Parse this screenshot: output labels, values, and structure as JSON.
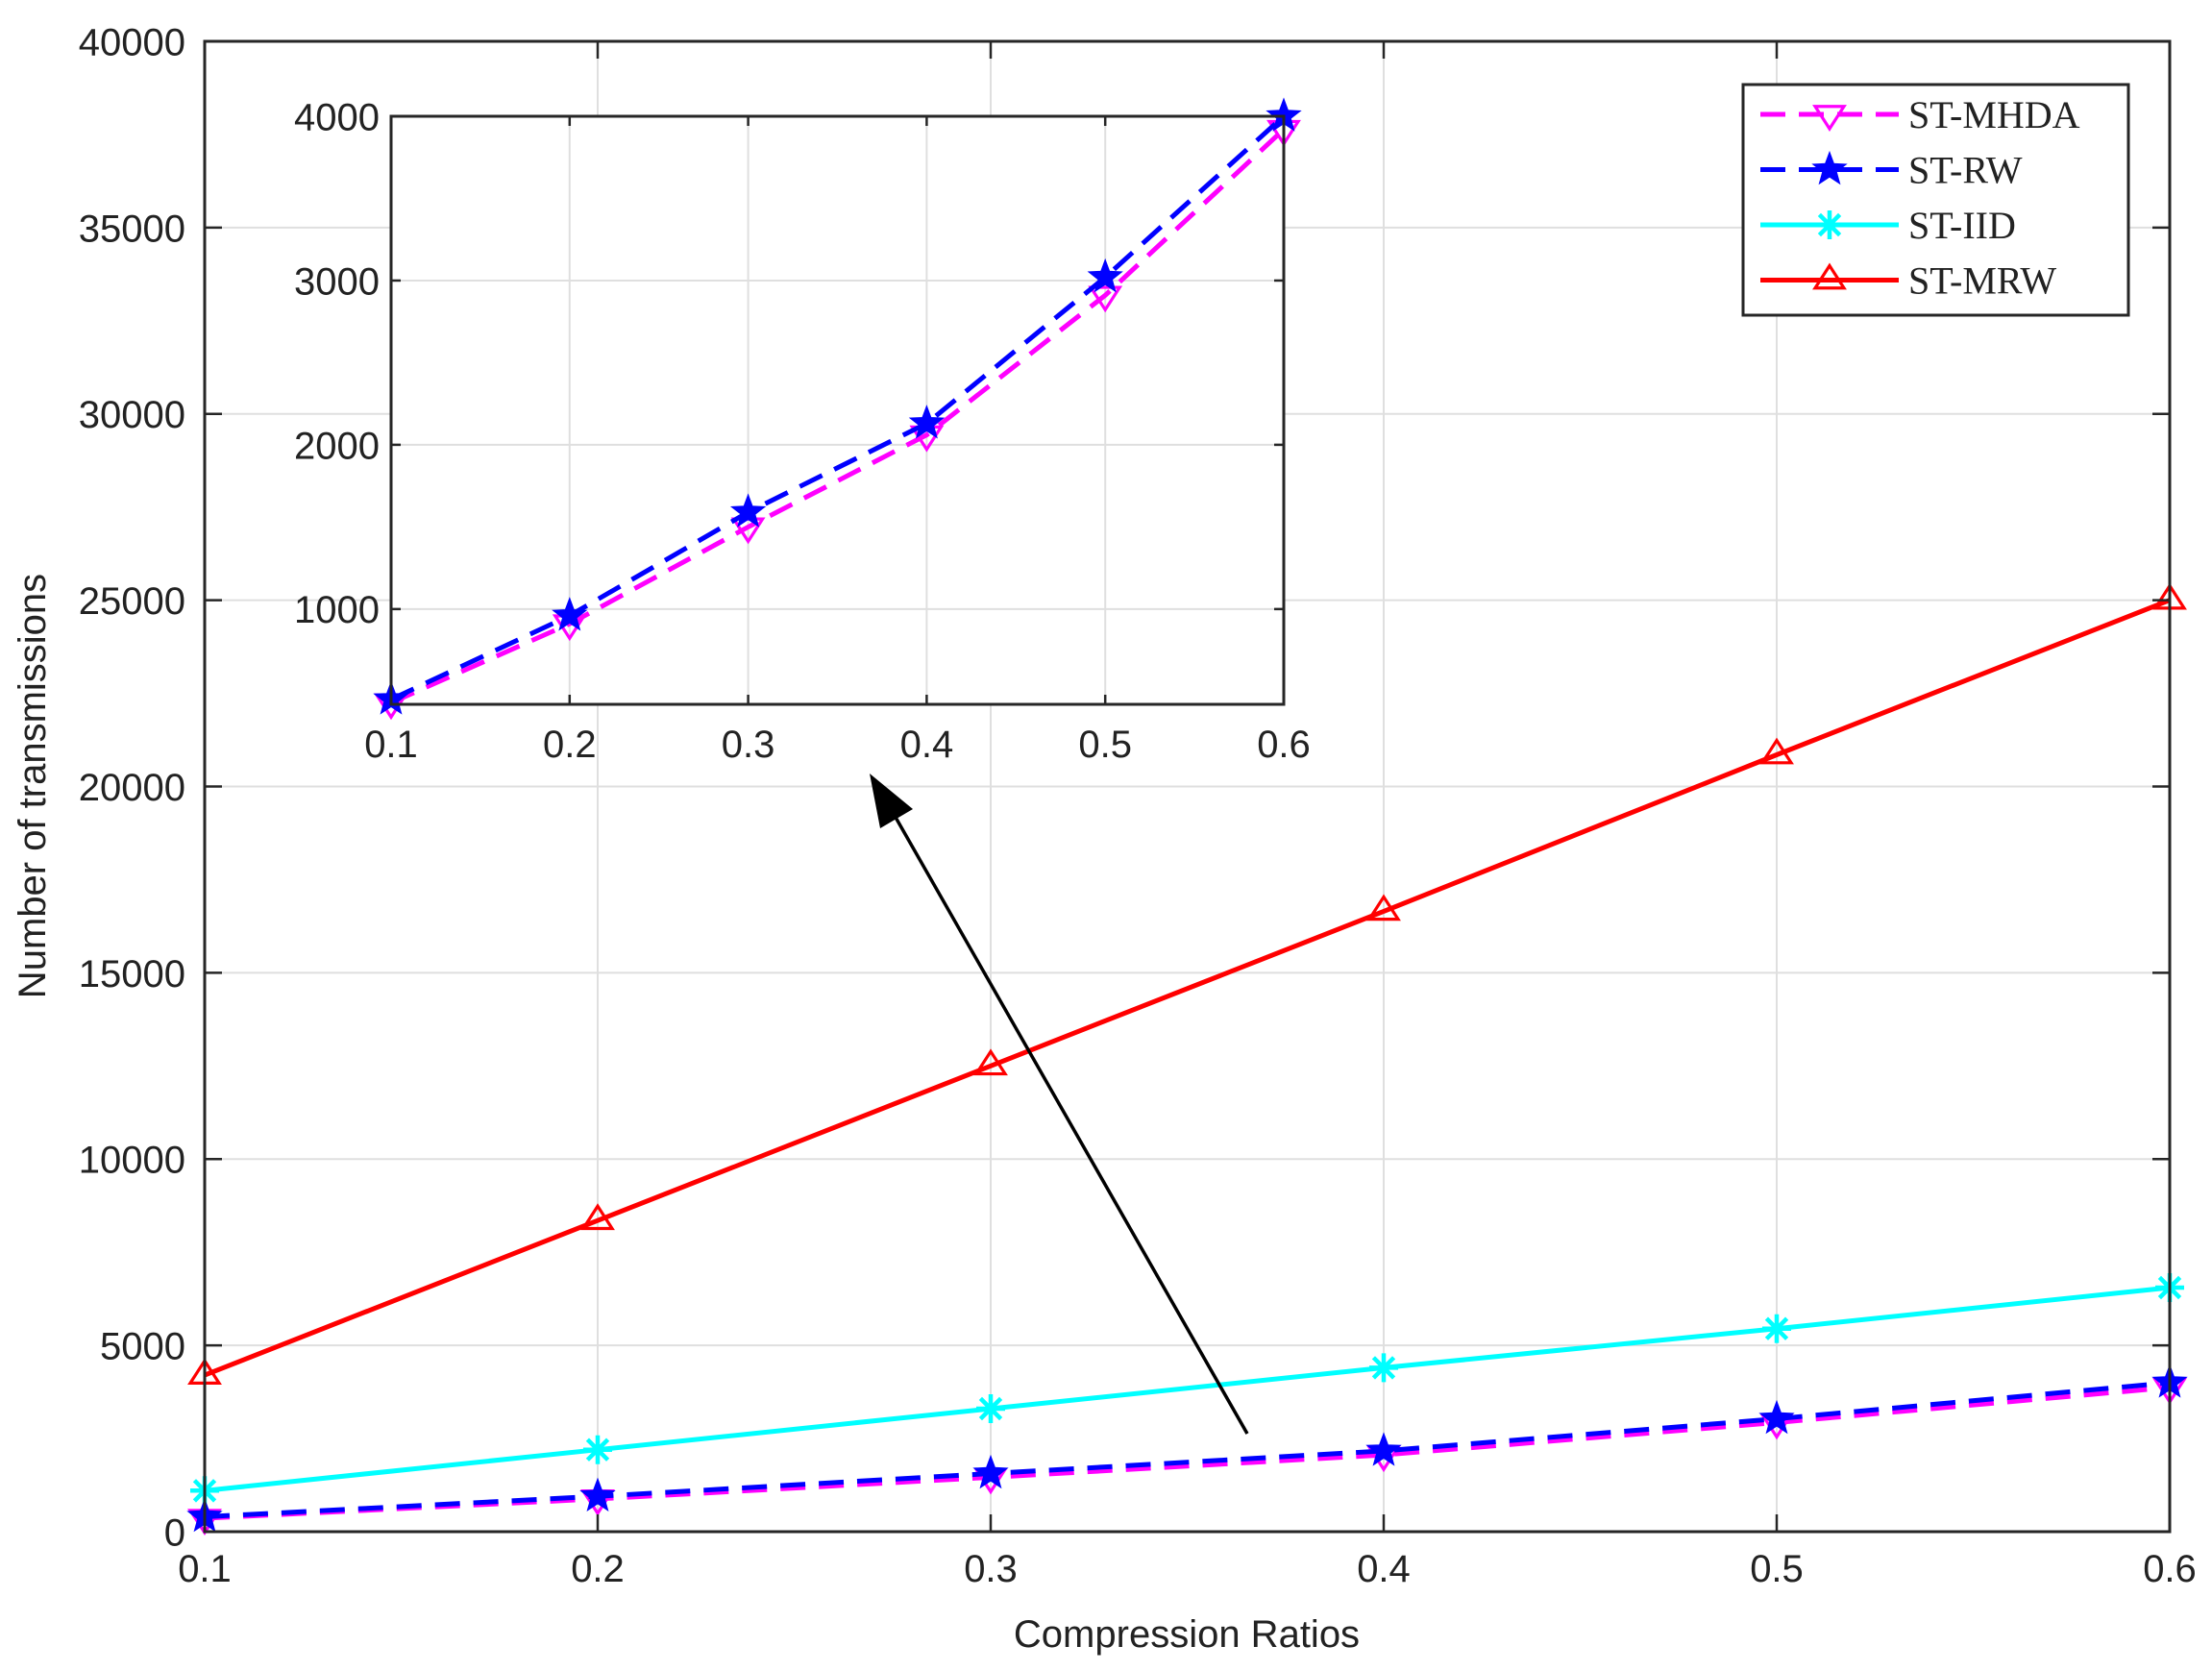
{
  "chart_data": [
    {
      "type": "line",
      "role": "main",
      "xlabel": "Compression Ratios",
      "ylabel": "Number of transmissions",
      "xlim": [
        0.1,
        0.6
      ],
      "ylim": [
        0,
        40000
      ],
      "xticks": [
        0.1,
        0.2,
        0.3,
        0.4,
        0.5,
        0.6
      ],
      "xtick_labels": [
        "0.1",
        "0.2",
        "0.3",
        "0.4",
        "0.5",
        "0.6"
      ],
      "yticks": [
        0,
        5000,
        10000,
        15000,
        20000,
        25000,
        30000,
        35000,
        40000
      ],
      "ytick_labels": [
        "0",
        "5000",
        "10000",
        "15000",
        "20000",
        "25000",
        "30000",
        "35000",
        "40000"
      ],
      "grid": true,
      "legend": "top-right",
      "x": [
        0.1,
        0.2,
        0.3,
        0.4,
        0.5,
        0.6
      ],
      "series": [
        {
          "name": "ST-MHDA",
          "values": [
            360,
            880,
            1460,
            2060,
            2930,
            3870
          ],
          "color": "#ff00ff",
          "dash": "dashed",
          "marker": "triangle-down"
        },
        {
          "name": "ST-RW",
          "values": [
            400,
            950,
            1560,
            2170,
            3030,
            4000
          ],
          "color": "#0000ff",
          "dash": "dashed",
          "marker": "star"
        },
        {
          "name": "ST-IID",
          "values": [
            1100,
            2200,
            3300,
            4400,
            5450,
            6550
          ],
          "color": "#00ffff",
          "dash": "solid",
          "marker": "asterisk"
        },
        {
          "name": "ST-MRW",
          "values": [
            4200,
            8350,
            12500,
            16650,
            20850,
            25000
          ],
          "color": "#ff0000",
          "dash": "solid",
          "marker": "triangle-up"
        }
      ],
      "annotation": "arrow from the main ST-RW/ST-MHDA curves to the inset"
    },
    {
      "type": "line",
      "role": "inset",
      "xlim": [
        0.1,
        0.6
      ],
      "ylim": [
        420,
        4000
      ],
      "xticks": [
        0.1,
        0.2,
        0.3,
        0.4,
        0.5,
        0.6
      ],
      "xtick_labels": [
        "0.1",
        "0.2",
        "0.3",
        "0.4",
        "0.5",
        "0.6"
      ],
      "yticks": [
        1000,
        2000,
        3000,
        4000
      ],
      "ytick_labels": [
        "1000",
        "2000",
        "3000",
        "4000"
      ],
      "grid": true,
      "x": [
        0.1,
        0.2,
        0.3,
        0.4,
        0.5,
        0.6
      ],
      "series": [
        {
          "name": "ST-MHDA",
          "values": [
            430,
            910,
            1500,
            2060,
            2910,
            3920
          ],
          "color": "#ff00ff",
          "dash": "dashed",
          "marker": "triangle-down"
        },
        {
          "name": "ST-RW",
          "values": [
            450,
            960,
            1590,
            2130,
            3020,
            4000
          ],
          "color": "#0000ff",
          "dash": "dashed",
          "marker": "star"
        }
      ]
    }
  ]
}
